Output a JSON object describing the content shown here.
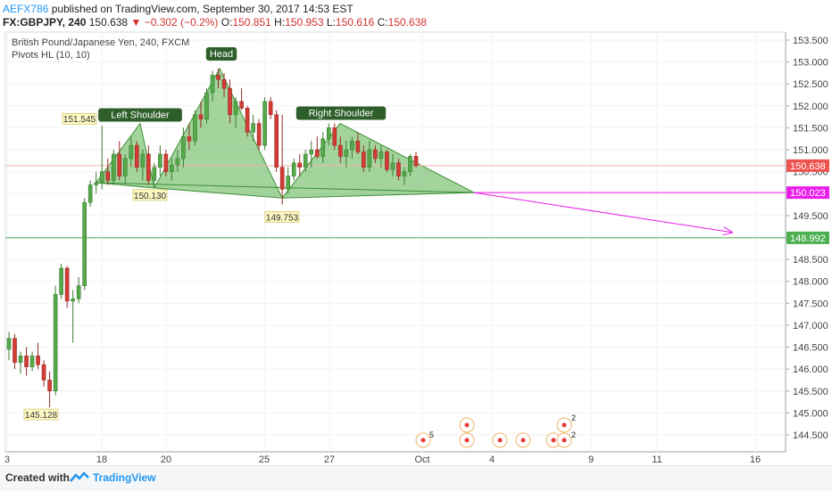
{
  "header": {
    "author": "AEFX786",
    "published": "published on TradingView.com, September 30, 2017 14:53 EST",
    "symbol": "FX:GBPJPY, 240",
    "last": "150.638",
    "change": "−0.302 (−0.2%)",
    "o_label": "O:",
    "o_value": "150.851",
    "h_label": "H:",
    "h_value": "150.953",
    "l_label": "L:",
    "l_value": "150.616",
    "c_label": "C:",
    "c_value": "150.638"
  },
  "chart_data": {
    "type": "candlestick",
    "title": "British Pound/Japanese Yen, 240, FXCM",
    "indicator": "Pivots HL (10, 10)",
    "ylim": [
      144.2,
      153.8
    ],
    "y_ticks": [
      "153.500",
      "153.000",
      "152.500",
      "152.000",
      "151.500",
      "151.000",
      "150.500",
      "150.000",
      "149.500",
      "149.000",
      "148.500",
      "148.000",
      "147.500",
      "147.000",
      "146.500",
      "146.000",
      "145.500",
      "145.000",
      "144.500"
    ],
    "x_ticks": [
      "3",
      "18",
      "20",
      "25",
      "27",
      "Oct",
      "4",
      "9",
      "11",
      "16"
    ],
    "price_tags": [
      {
        "value": 150.638,
        "label": "150.638",
        "color": "#ef5350"
      },
      {
        "value": 150.023,
        "label": "150.023",
        "color": "#e91ee9"
      },
      {
        "value": 148.992,
        "label": "148.992",
        "color": "#4caf50"
      }
    ],
    "pivot_labels": [
      {
        "label": "151.545",
        "value": 151.545
      },
      {
        "label": "150.130",
        "value": 150.13
      },
      {
        "label": "149.753",
        "value": 149.753
      },
      {
        "label": "145.128",
        "value": 145.128
      }
    ],
    "pattern_labels": [
      "Left Shoulder",
      "Head",
      "Right Shoulder"
    ],
    "neckline": 150.023,
    "target": 148.992,
    "event_counts": [
      "5",
      "2",
      "2"
    ],
    "candles": [
      [
        146.45,
        146.85,
        146.2,
        146.7
      ],
      [
        146.7,
        146.8,
        146.0,
        146.15
      ],
      [
        146.15,
        146.4,
        145.9,
        146.3
      ],
      [
        146.3,
        146.5,
        145.85,
        146.05
      ],
      [
        146.05,
        146.4,
        145.95,
        146.3
      ],
      [
        146.3,
        146.6,
        146.0,
        146.1
      ],
      [
        146.1,
        146.2,
        145.6,
        145.75
      ],
      [
        145.75,
        145.95,
        145.13,
        145.5
      ],
      [
        145.5,
        147.9,
        145.4,
        147.7
      ],
      [
        147.7,
        148.4,
        147.6,
        148.3
      ],
      [
        148.3,
        148.35,
        147.4,
        147.55
      ],
      [
        147.55,
        147.8,
        146.6,
        147.6
      ],
      [
        147.6,
        148.1,
        147.5,
        147.9
      ],
      [
        147.9,
        149.9,
        147.8,
        149.8
      ],
      [
        149.8,
        150.3,
        149.7,
        150.2
      ],
      [
        150.2,
        150.5,
        150.0,
        150.25
      ],
      [
        150.25,
        151.545,
        150.1,
        150.5
      ],
      [
        150.5,
        150.8,
        150.2,
        150.3
      ],
      [
        150.3,
        151.0,
        150.2,
        150.9
      ],
      [
        150.9,
        151.2,
        150.3,
        150.4
      ],
      [
        150.4,
        150.9,
        150.2,
        150.8
      ],
      [
        150.8,
        151.3,
        150.6,
        151.1
      ],
      [
        151.1,
        151.2,
        150.5,
        150.6
      ],
      [
        150.6,
        151.0,
        150.3,
        150.9
      ],
      [
        150.9,
        151.1,
        150.2,
        150.3
      ],
      [
        150.3,
        150.7,
        150.13,
        150.6
      ],
      [
        150.6,
        151.1,
        150.4,
        150.9
      ],
      [
        150.9,
        151.0,
        150.4,
        150.5
      ],
      [
        150.5,
        150.8,
        150.3,
        150.65
      ],
      [
        150.65,
        151.0,
        150.5,
        150.8
      ],
      [
        150.8,
        151.5,
        150.6,
        151.3
      ],
      [
        151.3,
        151.6,
        151.0,
        151.2
      ],
      [
        151.2,
        151.9,
        151.1,
        151.8
      ],
      [
        151.8,
        152.1,
        151.5,
        151.7
      ],
      [
        151.7,
        152.4,
        151.6,
        152.3
      ],
      [
        152.3,
        152.8,
        152.1,
        152.7
      ],
      [
        152.7,
        152.85,
        152.4,
        152.6
      ],
      [
        152.6,
        152.75,
        152.2,
        152.4
      ],
      [
        152.4,
        152.6,
        151.6,
        151.8
      ],
      [
        151.8,
        152.2,
        151.5,
        152.1
      ],
      [
        152.1,
        152.4,
        151.9,
        151.95
      ],
      [
        151.95,
        152.0,
        151.3,
        151.4
      ],
      [
        151.4,
        151.8,
        151.2,
        151.6
      ],
      [
        151.6,
        151.7,
        151.0,
        151.1
      ],
      [
        151.1,
        152.2,
        151.0,
        152.1
      ],
      [
        152.1,
        152.2,
        151.7,
        151.8
      ],
      [
        151.8,
        151.9,
        150.5,
        150.6
      ],
      [
        150.6,
        151.8,
        149.753,
        150.1
      ],
      [
        150.1,
        150.6,
        150.0,
        150.4
      ],
      [
        150.4,
        150.8,
        150.3,
        150.7
      ],
      [
        150.7,
        150.9,
        150.4,
        150.6
      ],
      [
        150.6,
        151.0,
        150.5,
        150.9
      ],
      [
        150.9,
        151.2,
        150.6,
        151.0
      ],
      [
        151.0,
        151.3,
        150.8,
        150.85
      ],
      [
        150.85,
        151.4,
        150.7,
        151.25
      ],
      [
        151.25,
        151.6,
        151.1,
        151.5
      ],
      [
        151.5,
        151.6,
        151.0,
        151.1
      ],
      [
        151.1,
        151.3,
        150.7,
        150.85
      ],
      [
        150.85,
        151.2,
        150.6,
        151.0
      ],
      [
        151.0,
        151.3,
        150.8,
        151.2
      ],
      [
        151.2,
        151.4,
        150.9,
        150.95
      ],
      [
        150.95,
        151.1,
        150.5,
        150.6
      ],
      [
        150.6,
        151.2,
        150.5,
        151.0
      ],
      [
        151.0,
        151.1,
        150.7,
        150.8
      ],
      [
        150.8,
        151.1,
        150.6,
        150.95
      ],
      [
        150.95,
        151.0,
        150.5,
        150.55
      ],
      [
        150.55,
        150.9,
        150.4,
        150.7
      ],
      [
        150.7,
        150.8,
        150.3,
        150.4
      ],
      [
        150.4,
        150.6,
        150.2,
        150.5
      ],
      [
        150.5,
        150.9,
        150.4,
        150.85
      ],
      [
        150.85,
        150.95,
        150.6,
        150.638
      ]
    ]
  },
  "footer": {
    "created_with": "Created with",
    "brand": "TradingView"
  }
}
